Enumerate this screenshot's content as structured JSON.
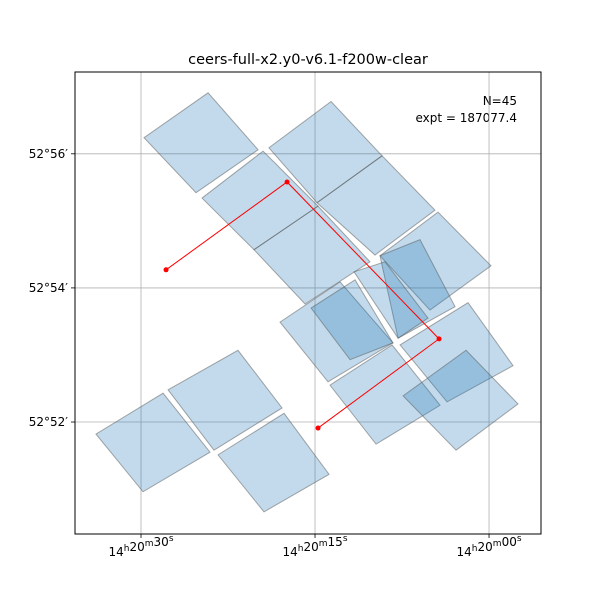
{
  "chart_data": {
    "type": "footprint",
    "title": "ceers-full-x2.y0-v6.1-f200w-clear",
    "annotations": [
      "N=45",
      "expt = 187077.4"
    ],
    "xlim": [
      35.69,
      -4.48
    ],
    "ylim": [
      50.33,
      57.22
    ],
    "xticks": [
      {
        "value": 30,
        "label": "14h20m30s"
      },
      {
        "value": 15,
        "label": "14h20m15s"
      },
      {
        "value": 0,
        "label": "14h20m00s"
      }
    ],
    "yticks": [
      {
        "value": 52,
        "label": "52°52′"
      },
      {
        "value": 54,
        "label": "52°54′"
      },
      {
        "value": 56,
        "label": "52°56′"
      }
    ],
    "grid": true,
    "color": "#1f77b4",
    "footprints": [
      {
        "ra": [
          29.74,
          24.22,
          19.91,
          25.26
        ],
        "dec": [
          56.24,
          56.91,
          56.06,
          55.42
        ]
      },
      {
        "ra": [
          18.97,
          13.62,
          9.22,
          14.83
        ],
        "dec": [
          56.09,
          56.78,
          55.97,
          55.27
        ]
      },
      {
        "ra": [
          14.83,
          9.22,
          4.66,
          9.83
        ],
        "dec": [
          55.27,
          55.97,
          55.16,
          54.49
        ]
      },
      {
        "ra": [
          24.74,
          19.48,
          14.74,
          20.26
        ],
        "dec": [
          55.34,
          56.04,
          55.22,
          54.57
        ]
      },
      {
        "ra": [
          20.26,
          14.74,
          10.26,
          15.86
        ],
        "dec": [
          54.57,
          55.22,
          54.39,
          53.76
        ]
      },
      {
        "ra": [
          9.4,
          4.4,
          -0.17,
          5.09
        ],
        "dec": [
          54.48,
          55.13,
          54.33,
          53.67
        ]
      },
      {
        "ra": [
          9.4,
          5.95,
          2.93,
          7.84
        ],
        "dec": [
          54.48,
          54.72,
          53.72,
          53.25
        ]
      },
      {
        "ra": [
          11.64,
          8.97,
          5.26,
          7.84
        ],
        "dec": [
          54.24,
          54.39,
          53.55,
          53.25
        ]
      },
      {
        "ra": [
          18.02,
          12.84,
          8.28,
          13.88
        ],
        "dec": [
          53.49,
          54.09,
          53.18,
          52.6
        ]
      },
      {
        "ra": [
          15.34,
          11.55,
          8.28,
          11.98
        ],
        "dec": [
          53.7,
          54.12,
          53.18,
          52.93
        ]
      },
      {
        "ra": [
          13.71,
          8.36,
          4.22,
          9.74
        ],
        "dec": [
          52.55,
          53.15,
          52.25,
          51.67
        ]
      },
      {
        "ra": [
          7.67,
          1.81,
          -2.07,
          3.62
        ],
        "dec": [
          53.15,
          53.78,
          52.84,
          52.3
        ]
      },
      {
        "ra": [
          7.41,
          1.98,
          -2.5,
          2.84
        ],
        "dec": [
          52.39,
          53.07,
          52.27,
          51.58
        ]
      },
      {
        "ra": [
          27.67,
          21.64,
          17.84,
          23.71
        ],
        "dec": [
          52.48,
          53.07,
          52.21,
          51.58
        ]
      },
      {
        "ra": [
          33.88,
          28.1,
          24.05,
          29.83
        ],
        "dec": [
          51.82,
          52.43,
          51.55,
          50.96
        ]
      },
      {
        "ra": [
          23.36,
          17.67,
          13.79,
          19.4
        ],
        "dec": [
          51.51,
          52.13,
          51.22,
          50.66
        ]
      }
    ],
    "path": {
      "color": "#ff0000",
      "ra": [
        27.84,
        17.41,
        4.31,
        14.74
      ],
      "dec": [
        54.27,
        55.58,
        53.24,
        51.91
      ]
    }
  }
}
